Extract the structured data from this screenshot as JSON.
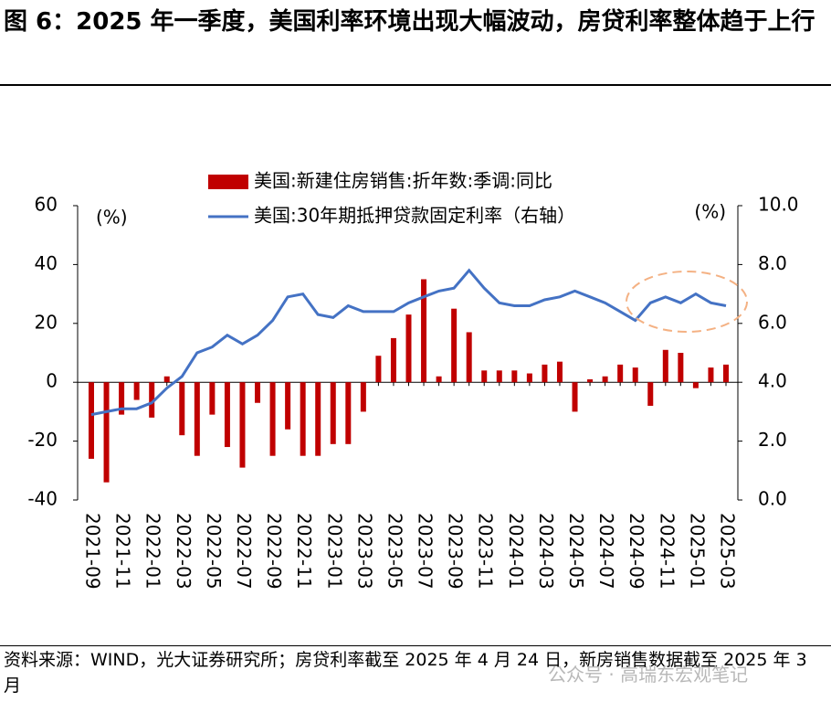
{
  "chart_data": {
    "type": "bar_line",
    "title": "图 6：2025 年一季度，美国利率环境出现大幅波动，房贷利率整体趋于上行",
    "source": "资料来源：WIND，光大证券研究所；房贷利率截至 2025 年 4 月 24 日，新房销售数据截至 2025 年 3 月",
    "watermark": "公众号 · 高瑞东宏观笔记",
    "y_unit": "(%)",
    "y2_unit": "(%)",
    "categories": [
      "2021-09",
      null,
      "2021-11",
      null,
      "2022-01",
      null,
      "2022-03",
      null,
      "2022-05",
      null,
      "2022-07",
      null,
      "2022-09",
      null,
      "2022-11",
      null,
      "2023-01",
      null,
      "2023-03",
      null,
      "2023-05",
      null,
      "2023-07",
      null,
      "2023-09",
      null,
      "2023-11",
      null,
      "2024-01",
      null,
      "2024-03",
      null,
      "2024-05",
      null,
      "2024-07",
      null,
      "2024-09",
      null,
      "2024-11",
      null,
      "2025-01",
      null,
      "2025-03"
    ],
    "series": [
      {
        "name": "美国:新建住房销售:折年数:季调:同比",
        "color": "#c00000",
        "kind": "bar",
        "values": [
          -26,
          -34,
          -11,
          -6,
          -12,
          2,
          -18,
          -25,
          -11,
          -22,
          -29,
          -7,
          -25,
          -16,
          -25,
          -25,
          -21,
          -21,
          -10,
          9,
          15,
          23,
          35,
          2,
          25,
          17,
          4,
          4,
          4,
          3,
          6,
          7,
          -10,
          1,
          2,
          6,
          5,
          -8,
          11,
          10,
          -2,
          5,
          6
        ]
      },
      {
        "name": "美国:30年期抵押贷款固定利率（右轴）",
        "color": "#4472c4",
        "kind": "line",
        "axis": "y2",
        "values": [
          2.9,
          3.0,
          3.1,
          3.1,
          3.3,
          3.8,
          4.2,
          5.0,
          5.2,
          5.6,
          5.3,
          5.6,
          6.1,
          6.9,
          7.0,
          6.3,
          6.2,
          6.6,
          6.4,
          6.4,
          6.4,
          6.7,
          6.9,
          7.1,
          7.2,
          7.8,
          7.2,
          6.7,
          6.6,
          6.6,
          6.8,
          6.9,
          7.1,
          6.9,
          6.7,
          6.4,
          6.1,
          6.7,
          6.9,
          6.7,
          7.0,
          6.7,
          6.6
        ]
      }
    ],
    "ylim": [
      -40,
      60
    ],
    "yticks": [
      -40,
      -20,
      0,
      20,
      40,
      60
    ],
    "y2lim": [
      0,
      10
    ],
    "y2ticks": [
      {
        "value": 0,
        "label": "0.0"
      },
      {
        "value": 2,
        "label": "2.0"
      },
      {
        "value": 4,
        "label": "4.0"
      },
      {
        "value": 6,
        "label": "6.0"
      },
      {
        "value": 8,
        "label": "8.0"
      },
      {
        "value": 10,
        "label": "10.0"
      }
    ],
    "legend": "top"
  }
}
